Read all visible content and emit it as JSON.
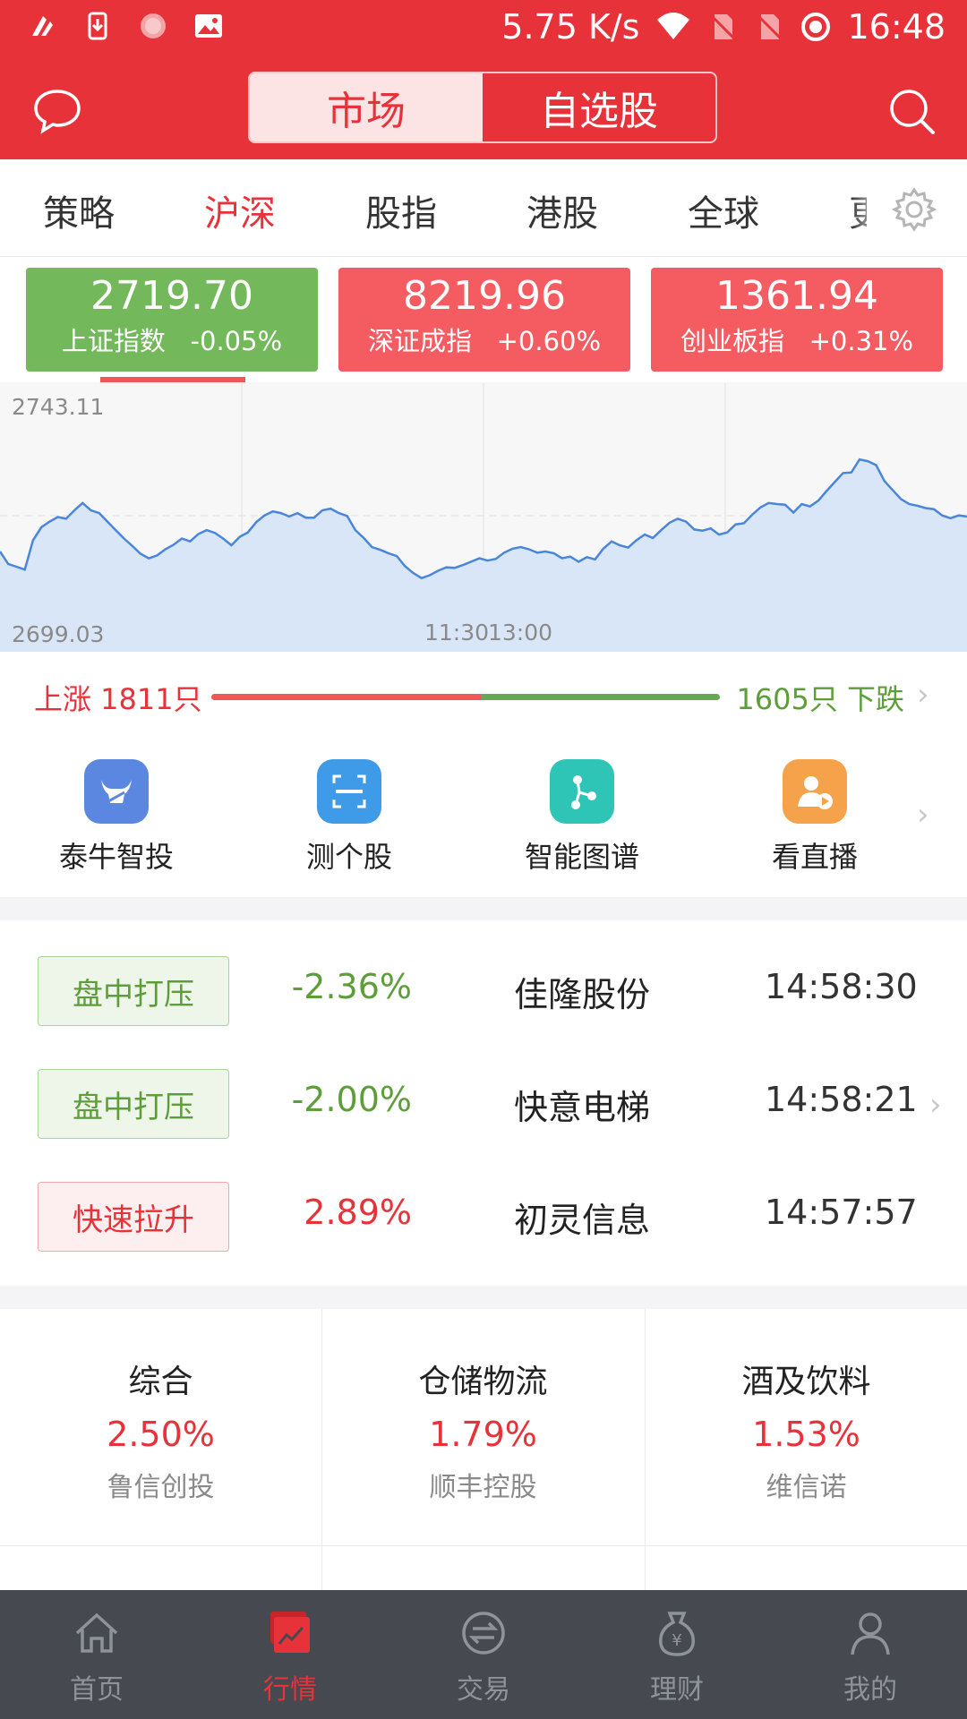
{
  "status_bar": {
    "speed": "5.75 K/s",
    "time": "16:48"
  },
  "header": {
    "segments": [
      "市场",
      "自选股"
    ],
    "active_segment": 0
  },
  "tabs": {
    "items": [
      "策略",
      "沪深",
      "股指",
      "港股",
      "全球",
      "更"
    ],
    "active": 1
  },
  "indices": [
    {
      "value": "2719.70",
      "name": "上证指数",
      "change": "-0.05%",
      "color": "#73b85a"
    },
    {
      "value": "8219.96",
      "name": "深证成指",
      "change": "+0.60%",
      "color": "#f55c62"
    },
    {
      "value": "1361.94",
      "name": "创业板指",
      "change": "+0.31%",
      "color": "#f55c62"
    }
  ],
  "chart_data": {
    "type": "area",
    "ylim": [
      2699.03,
      2743.11
    ],
    "y_max_label": "2743.11",
    "y_min_label": "2699.03",
    "x_labels": [
      "11:30",
      "13:00"
    ],
    "values": [
      2715.2,
      2713.0,
      2712.5,
      2712.0,
      2717.2,
      2719.5,
      2720.5,
      2721.3,
      2721.0,
      2722.5,
      2723.8,
      2722.5,
      2722.0,
      2720.5,
      2719.0,
      2717.5,
      2716.2,
      2714.8,
      2714.0,
      2714.5,
      2715.6,
      2716.4,
      2717.5,
      2717.0,
      2718.3,
      2719.0,
      2718.5,
      2717.5,
      2716.3,
      2717.8,
      2718.6,
      2720.4,
      2721.6,
      2722.3,
      2722.0,
      2721.4,
      2722.0,
      2721.2,
      2721.2,
      2722.5,
      2722.8,
      2722.0,
      2721.5,
      2719.0,
      2717.6,
      2716.0,
      2715.5,
      2714.9,
      2714.4,
      2712.6,
      2711.4,
      2710.5,
      2711.0,
      2711.8,
      2712.4,
      2712.3,
      2712.8,
      2713.4,
      2714.0,
      2713.6,
      2713.9,
      2715.0,
      2715.7,
      2716.0,
      2715.6,
      2715.0,
      2715.2,
      2714.9,
      2714.0,
      2714.3,
      2713.4,
      2714.2,
      2713.8,
      2715.7,
      2717.0,
      2716.3,
      2715.9,
      2717.2,
      2718.2,
      2717.6,
      2719.0,
      2720.3,
      2721.0,
      2720.5,
      2719.1,
      2718.9,
      2719.3,
      2718.2,
      2718.6,
      2720.0,
      2720.2,
      2721.7,
      2723.0,
      2723.8,
      2723.6,
      2723.5,
      2722.1,
      2723.6,
      2723.2,
      2724.2,
      2725.9,
      2727.5,
      2729.1,
      2729.2,
      2731.5,
      2731.2,
      2730.5,
      2727.7,
      2726.1,
      2724.5,
      2723.6,
      2723.3,
      2722.9,
      2722.7,
      2721.6,
      2721.1,
      2721.6,
      2721.4
    ]
  },
  "ratio": {
    "up_label": "上涨 1811只",
    "down_label": "1605只 下跌",
    "up_fraction": 0.53
  },
  "shortcuts": [
    {
      "label": "泰牛智投",
      "icon": "bull-icon",
      "color": "#5b87e0"
    },
    {
      "label": "测个股",
      "icon": "scan-icon",
      "color": "#3f9be8"
    },
    {
      "label": "智能图谱",
      "icon": "graph-nodes-icon",
      "color": "#2ec4b6"
    },
    {
      "label": "看直播",
      "icon": "live-person-icon",
      "color": "#f5a24b"
    }
  ],
  "alerts": [
    {
      "tag": "盘中打压",
      "tag_type": "green",
      "pct": "-2.36%",
      "stock": "佳隆股份",
      "time": "14:58:30"
    },
    {
      "tag": "盘中打压",
      "tag_type": "green",
      "pct": "-2.00%",
      "stock": "快意电梯",
      "time": "14:58:21"
    },
    {
      "tag": "快速拉升",
      "tag_type": "red",
      "pct": "2.89%",
      "stock": "初灵信息",
      "time": "14:57:57"
    }
  ],
  "sectors": [
    {
      "name": "综合",
      "pct": "2.50%",
      "leader": "鲁信创投"
    },
    {
      "name": "仓储物流",
      "pct": "1.79%",
      "leader": "顺丰控股"
    },
    {
      "name": "酒及饮料",
      "pct": "1.53%",
      "leader": "维信诺"
    }
  ],
  "nav": {
    "items": [
      "首页",
      "行情",
      "交易",
      "理财",
      "我的"
    ],
    "active": 1
  },
  "colors": {
    "accent": "#e8323a",
    "up": "#e8323a",
    "down": "#5e9e3a"
  }
}
